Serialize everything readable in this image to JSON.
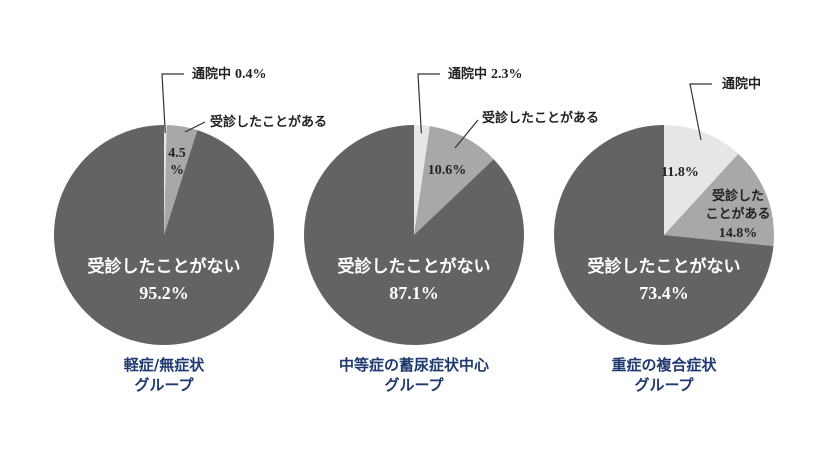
{
  "chart_data": [
    {
      "type": "pie",
      "title": "軽症/無症状\nグループ",
      "title_lines": [
        "軽症/無症状",
        "グループ"
      ],
      "slices": [
        {
          "label": "通院中",
          "value": 0.4,
          "text": "0.4%",
          "color": "#e6e6e6"
        },
        {
          "label": "受診したことがある",
          "value": 4.5,
          "text": "4.5\n%",
          "color": "#a8a8a8"
        },
        {
          "label": "受診したことがない",
          "value": 95.2,
          "text": "95.2%",
          "color": "#636363"
        }
      ]
    },
    {
      "type": "pie",
      "title_lines": [
        "中等症の蓄尿症状中心",
        "グループ"
      ],
      "slices": [
        {
          "label": "通院中",
          "value": 2.3,
          "text": "2.3%",
          "color": "#e6e6e6"
        },
        {
          "label": "受診したことがある",
          "value": 10.6,
          "text": "10.6%",
          "color": "#a8a8a8"
        },
        {
          "label": "受診したことがない",
          "value": 87.1,
          "text": "87.1%",
          "color": "#636363"
        }
      ]
    },
    {
      "type": "pie",
      "title_lines": [
        "重症の複合症状",
        "グループ"
      ],
      "slices": [
        {
          "label": "通院中",
          "value": 11.8,
          "text": "11.8%",
          "color": "#e6e6e6"
        },
        {
          "label": "受診したことがある",
          "value": 14.8,
          "text": "14.8%",
          "color": "#a8a8a8"
        },
        {
          "label": "受診したことがない",
          "value": 73.4,
          "text": "73.4%",
          "color": "#636363"
        }
      ]
    }
  ],
  "title_color": "#1f3a70"
}
